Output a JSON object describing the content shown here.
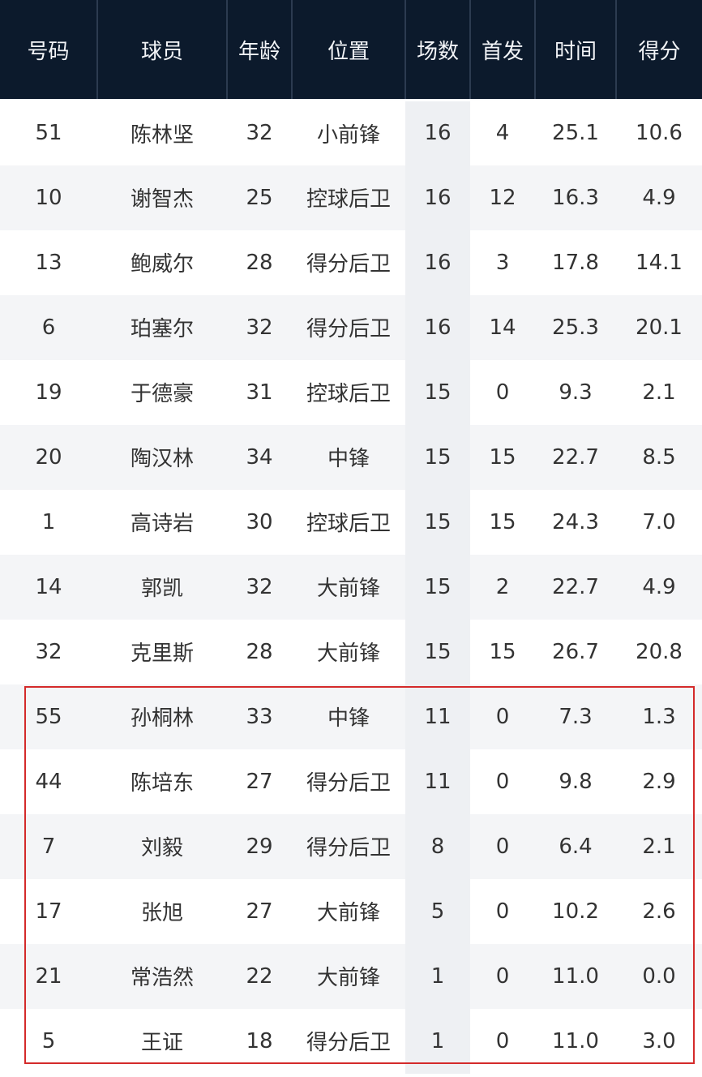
{
  "columns": [
    "号码",
    "球员",
    "年龄",
    "位置",
    "场数",
    "首发",
    "时间",
    "得分"
  ],
  "rows": [
    [
      "51",
      "陈林坚",
      "32",
      "小前锋",
      "16",
      "4",
      "25.1",
      "10.6"
    ],
    [
      "10",
      "谢智杰",
      "25",
      "控球后卫",
      "16",
      "12",
      "16.3",
      "4.9"
    ],
    [
      "13",
      "鲍威尔",
      "28",
      "得分后卫",
      "16",
      "3",
      "17.8",
      "14.1"
    ],
    [
      "6",
      "珀塞尔",
      "32",
      "得分后卫",
      "16",
      "14",
      "25.3",
      "20.1"
    ],
    [
      "19",
      "于德豪",
      "31",
      "控球后卫",
      "15",
      "0",
      "9.3",
      "2.1"
    ],
    [
      "20",
      "陶汉林",
      "34",
      "中锋",
      "15",
      "15",
      "22.7",
      "8.5"
    ],
    [
      "1",
      "高诗岩",
      "30",
      "控球后卫",
      "15",
      "15",
      "24.3",
      "7.0"
    ],
    [
      "14",
      "郭凯",
      "32",
      "大前锋",
      "15",
      "2",
      "22.7",
      "4.9"
    ],
    [
      "32",
      "克里斯",
      "28",
      "大前锋",
      "15",
      "15",
      "26.7",
      "20.8"
    ],
    [
      "55",
      "孙桐林",
      "33",
      "中锋",
      "11",
      "0",
      "7.3",
      "1.3"
    ],
    [
      "44",
      "陈培东",
      "27",
      "得分后卫",
      "11",
      "0",
      "9.8",
      "2.9"
    ],
    [
      "7",
      "刘毅",
      "29",
      "得分后卫",
      "8",
      "0",
      "6.4",
      "2.1"
    ],
    [
      "17",
      "张旭",
      "27",
      "大前锋",
      "5",
      "0",
      "10.2",
      "2.6"
    ],
    [
      "21",
      "常浩然",
      "22",
      "大前锋",
      "1",
      "0",
      "11.0",
      "0.0"
    ],
    [
      "5",
      "王证",
      "18",
      "得分后卫",
      "1",
      "0",
      "11.0",
      "3.0"
    ]
  ],
  "highlight": {
    "color": "#d42a2a",
    "rows_from": 10,
    "rows_to": 15
  },
  "colors": {
    "header_bg": "#0c1a2c",
    "header_text": "#f2f4f7",
    "row_alt": "#f4f5f7"
  }
}
